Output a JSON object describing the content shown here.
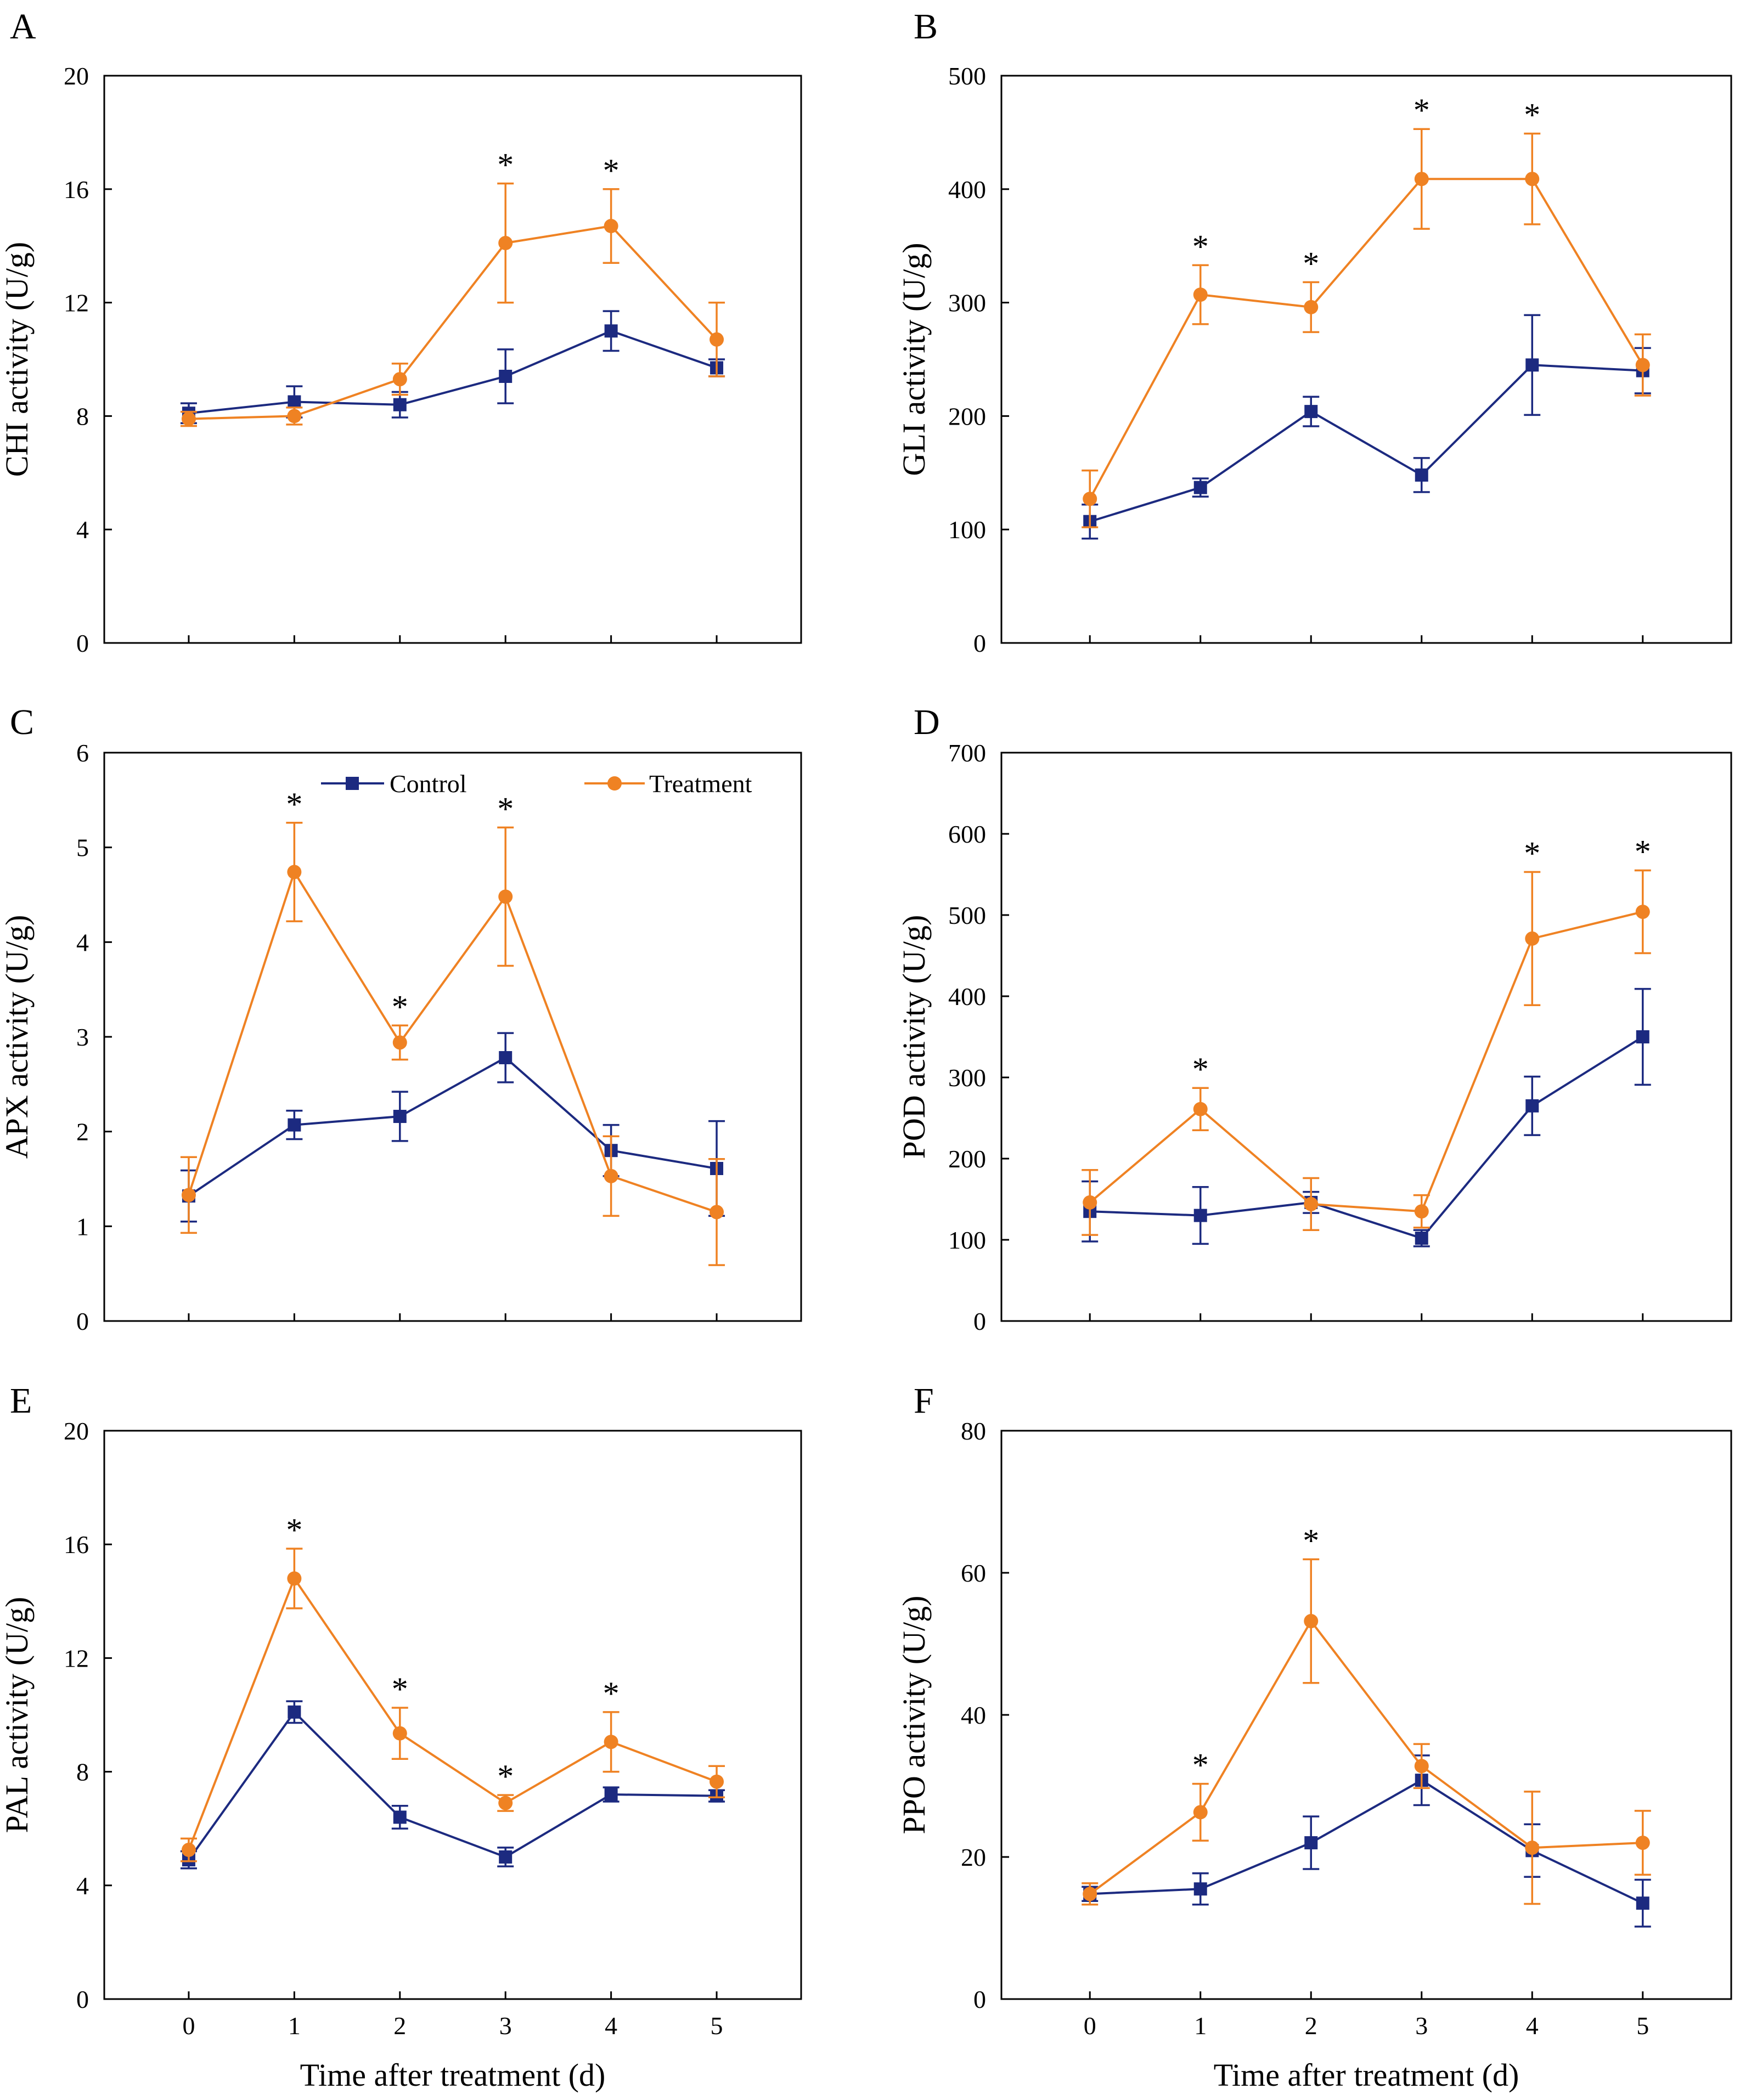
{
  "colors": {
    "control": "#1c2a80",
    "treatment": "#ef8223",
    "axis": "#000000"
  },
  "legend": {
    "control": "Control",
    "treatment": "Treatment"
  },
  "shared_xlabel": "Time after treatment (d)",
  "chart_data": [
    {
      "panel": "A",
      "type": "line",
      "ylabel": "CHI activity (U/g)",
      "x": [
        0,
        1,
        2,
        3,
        4,
        5
      ],
      "xlim": [
        -0.8,
        5.8
      ],
      "ylim": [
        0,
        20
      ],
      "yticks": [
        0,
        4,
        8,
        12,
        16,
        20
      ],
      "show_x_labels": false,
      "legend": false,
      "series": [
        {
          "name": "Control",
          "values": [
            8.1,
            8.5,
            8.4,
            9.4,
            11.0,
            9.7
          ],
          "err": [
            0.35,
            0.55,
            0.45,
            0.95,
            0.7,
            0.3
          ]
        },
        {
          "name": "Treatment",
          "values": [
            7.9,
            8.0,
            9.3,
            14.1,
            14.7,
            10.7
          ],
          "err": [
            0.25,
            0.3,
            0.55,
            2.1,
            1.3,
            1.3
          ]
        }
      ],
      "significance": [
        {
          "x": 3,
          "label": "*"
        },
        {
          "x": 4,
          "label": "*"
        }
      ]
    },
    {
      "panel": "B",
      "type": "line",
      "ylabel": "GLI activity (U/g)",
      "x": [
        0,
        1,
        2,
        3,
        4,
        5
      ],
      "xlim": [
        -0.8,
        5.8
      ],
      "ylim": [
        0,
        500
      ],
      "yticks": [
        0,
        100,
        200,
        300,
        400,
        500
      ],
      "show_x_labels": false,
      "legend": false,
      "series": [
        {
          "name": "Control",
          "values": [
            107,
            137,
            204,
            148,
            245,
            240
          ],
          "err": [
            15,
            8,
            13,
            15,
            44,
            20
          ]
        },
        {
          "name": "Treatment",
          "values": [
            127,
            307,
            296,
            409,
            409,
            245
          ],
          "err": [
            25,
            26,
            22,
            44,
            40,
            27
          ]
        }
      ],
      "significance": [
        {
          "x": 1,
          "label": "*"
        },
        {
          "x": 2,
          "label": "*"
        },
        {
          "x": 3,
          "label": "*"
        },
        {
          "x": 4,
          "label": "*"
        }
      ]
    },
    {
      "panel": "C",
      "type": "line",
      "ylabel": "APX activity (U/g)",
      "x": [
        0,
        1,
        2,
        3,
        4,
        5
      ],
      "xlim": [
        -0.8,
        5.8
      ],
      "ylim": [
        0,
        6
      ],
      "yticks": [
        0,
        1,
        2,
        3,
        4,
        5,
        6
      ],
      "show_x_labels": false,
      "legend": true,
      "series": [
        {
          "name": "Control",
          "values": [
            1.32,
            2.07,
            2.16,
            2.78,
            1.8,
            1.61
          ],
          "err": [
            0.27,
            0.15,
            0.26,
            0.26,
            0.27,
            0.5
          ]
        },
        {
          "name": "Treatment",
          "values": [
            1.33,
            4.74,
            2.94,
            4.48,
            1.53,
            1.15
          ],
          "err": [
            0.4,
            0.52,
            0.18,
            0.73,
            0.42,
            0.56
          ]
        }
      ],
      "significance": [
        {
          "x": 1,
          "label": "*"
        },
        {
          "x": 2,
          "label": "*"
        },
        {
          "x": 3,
          "label": "*"
        }
      ]
    },
    {
      "panel": "D",
      "type": "line",
      "ylabel": "POD activity (U/g)",
      "x": [
        0,
        1,
        2,
        3,
        4,
        5
      ],
      "xlim": [
        -0.8,
        5.8
      ],
      "ylim": [
        0,
        700
      ],
      "yticks": [
        0,
        100,
        200,
        300,
        400,
        500,
        600,
        700
      ],
      "show_x_labels": false,
      "legend": false,
      "series": [
        {
          "name": "Control",
          "values": [
            135,
            130,
            146,
            102,
            265,
            350
          ],
          "err": [
            37,
            35,
            13,
            10,
            36,
            59
          ]
        },
        {
          "name": "Treatment",
          "values": [
            146,
            261,
            144,
            135,
            471,
            504
          ],
          "err": [
            40,
            26,
            32,
            20,
            82,
            51
          ]
        }
      ],
      "significance": [
        {
          "x": 1,
          "label": "*"
        },
        {
          "x": 4,
          "label": "*"
        },
        {
          "x": 5,
          "label": "*"
        }
      ]
    },
    {
      "panel": "E",
      "type": "line",
      "ylabel": "PAL activity (U/g)",
      "xlabel": "Time after treatment (d)",
      "x": [
        0,
        1,
        2,
        3,
        4,
        5
      ],
      "xlim": [
        -0.8,
        5.8
      ],
      "ylim": [
        0,
        20
      ],
      "yticks": [
        0,
        4,
        8,
        12,
        16,
        20
      ],
      "show_x_labels": true,
      "legend": false,
      "series": [
        {
          "name": "Control",
          "values": [
            4.9,
            10.1,
            6.4,
            5.0,
            7.2,
            7.15
          ],
          "err": [
            0.3,
            0.38,
            0.4,
            0.33,
            0.25,
            0.2
          ]
        },
        {
          "name": "Treatment",
          "values": [
            5.25,
            14.8,
            9.35,
            6.9,
            9.05,
            7.65
          ],
          "err": [
            0.4,
            1.05,
            0.9,
            0.28,
            1.05,
            0.55
          ]
        }
      ],
      "significance": [
        {
          "x": 1,
          "label": "*"
        },
        {
          "x": 2,
          "label": "*"
        },
        {
          "x": 3,
          "label": "*"
        },
        {
          "x": 4,
          "label": "*"
        }
      ]
    },
    {
      "panel": "F",
      "type": "line",
      "ylabel": "PPO activity (U/g)",
      "xlabel": "Time after treatment (d)",
      "x": [
        0,
        1,
        2,
        3,
        4,
        5
      ],
      "xlim": [
        -0.8,
        5.8
      ],
      "ylim": [
        0,
        80
      ],
      "yticks": [
        0,
        20,
        40,
        60,
        80
      ],
      "show_x_labels": true,
      "legend": false,
      "series": [
        {
          "name": "Control",
          "values": [
            14.8,
            15.5,
            22.0,
            30.8,
            20.9,
            13.5
          ],
          "err": [
            1.0,
            2.2,
            3.7,
            3.5,
            3.7,
            3.3
          ]
        },
        {
          "name": "Treatment",
          "values": [
            14.8,
            26.3,
            53.2,
            32.8,
            21.3,
            22.0
          ],
          "err": [
            1.5,
            4.0,
            8.7,
            3.1,
            7.9,
            4.5
          ]
        }
      ],
      "significance": [
        {
          "x": 1,
          "label": "*"
        },
        {
          "x": 2,
          "label": "*"
        }
      ]
    }
  ]
}
